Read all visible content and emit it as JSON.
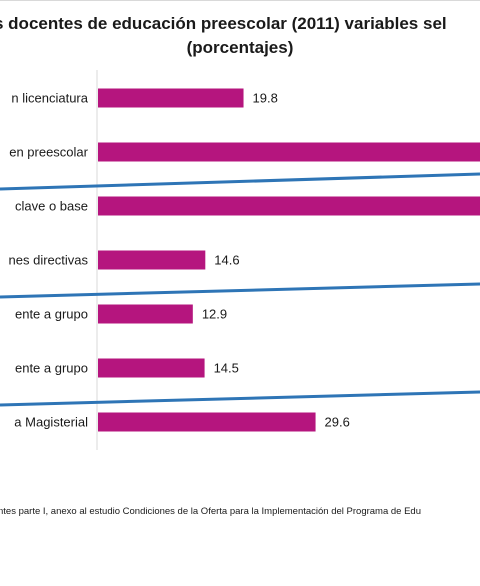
{
  "chart_data": {
    "type": "bar",
    "orientation": "horizontal",
    "title": "s docentes de educación preescolar (2011) variables sel",
    "subtitle": "(porcentajes)",
    "categories": [
      "n licenciatura",
      "en preescolar",
      "clave o base",
      "nes directivas",
      "ente a grupo",
      "ente a grupo",
      "a Magisterial"
    ],
    "values": [
      19.8,
      null,
      null,
      14.6,
      12.9,
      14.5,
      29.6
    ],
    "data_labels": [
      "19.8",
      "",
      "",
      "14.6",
      "12.9",
      "14.5",
      "29.6"
    ],
    "bar_color": "#b5157e",
    "separator_color": "#2e75b6",
    "grid": false
  },
  "source_note": "ntes parte I, anexo al estudio Condiciones de la Oferta para la Implementación del Programa de Edu"
}
